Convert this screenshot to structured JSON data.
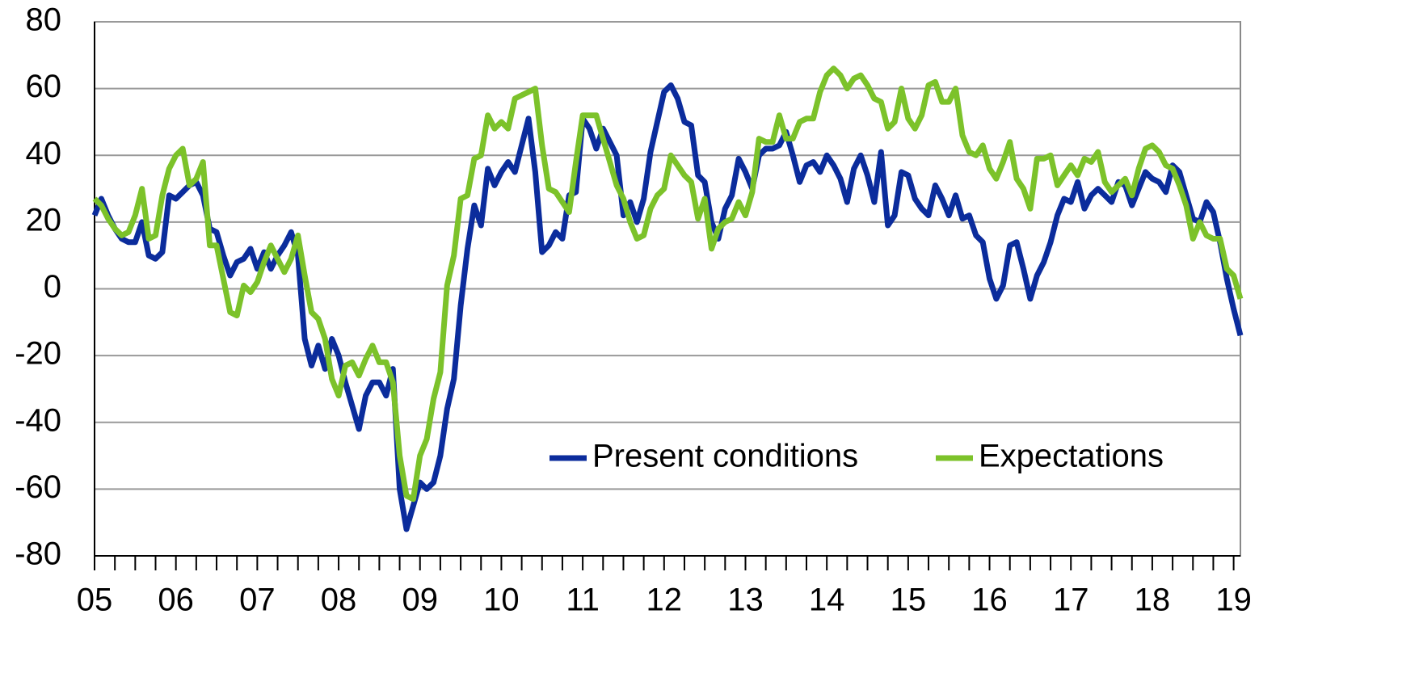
{
  "chart_data": {
    "type": "line",
    "categories": [
      "05",
      null,
      null,
      null,
      null,
      null,
      null,
      null,
      null,
      null,
      null,
      null,
      "06",
      null,
      null,
      null,
      null,
      null,
      null,
      null,
      null,
      null,
      null,
      null,
      "07",
      null,
      null,
      null,
      null,
      null,
      null,
      null,
      null,
      null,
      null,
      null,
      "08",
      null,
      null,
      null,
      null,
      null,
      null,
      null,
      null,
      null,
      null,
      null,
      "09",
      null,
      null,
      null,
      null,
      null,
      null,
      null,
      null,
      null,
      null,
      null,
      "10",
      null,
      null,
      null,
      null,
      null,
      null,
      null,
      null,
      null,
      null,
      null,
      "11",
      null,
      null,
      null,
      null,
      null,
      null,
      null,
      null,
      null,
      null,
      null,
      "12",
      null,
      null,
      null,
      null,
      null,
      null,
      null,
      null,
      null,
      null,
      null,
      "13",
      null,
      null,
      null,
      null,
      null,
      null,
      null,
      null,
      null,
      null,
      null,
      "14",
      null,
      null,
      null,
      null,
      null,
      null,
      null,
      null,
      null,
      null,
      null,
      "15",
      null,
      null,
      null,
      null,
      null,
      null,
      null,
      null,
      null,
      null,
      null,
      "16",
      null,
      null,
      null,
      null,
      null,
      null,
      null,
      null,
      null,
      null,
      null,
      "17",
      null,
      null,
      null,
      null,
      null,
      null,
      null,
      null,
      null,
      null,
      null,
      "18",
      null,
      null,
      null,
      null,
      null,
      null,
      null,
      null,
      null,
      null,
      null,
      "19",
      null
    ],
    "series": [
      {
        "name": "Present conditions",
        "color": "#0b2c9c",
        "values": [
          22,
          27,
          22,
          18,
          15,
          14,
          14,
          20,
          10,
          9,
          11,
          28,
          27,
          29,
          31,
          32,
          28,
          18,
          17,
          10,
          4,
          8,
          9,
          12,
          6,
          11,
          6,
          10,
          13,
          17,
          10,
          -15,
          -23,
          -17,
          -24,
          -15,
          -20,
          -28,
          -35,
          -42,
          -32,
          -28,
          -28,
          -32,
          -24,
          -60,
          -72,
          -65,
          -58,
          -60,
          -58,
          -50,
          -36,
          -27,
          -5,
          12,
          25,
          19,
          36,
          31,
          35,
          38,
          35,
          43,
          51,
          35,
          11,
          13,
          17,
          15,
          28,
          29,
          51,
          48,
          42,
          48,
          44,
          40,
          22,
          26,
          20,
          27,
          41,
          50,
          59,
          61,
          57,
          50,
          49,
          34,
          32,
          20,
          15,
          24,
          28,
          39,
          35,
          30,
          40,
          42,
          42,
          43,
          47,
          40,
          32,
          37,
          38,
          35,
          40,
          37,
          33,
          26,
          36,
          40,
          34,
          26,
          41,
          19,
          22,
          35,
          34,
          27,
          24,
          22,
          31,
          27,
          22,
          28,
          21,
          22,
          16,
          14,
          3,
          -3,
          1,
          13,
          14,
          6,
          -3,
          4,
          8,
          14,
          22,
          27,
          26,
          32,
          24,
          28,
          30,
          28,
          26,
          32,
          31,
          25,
          30,
          35,
          33,
          32,
          29,
          37,
          35,
          28,
          21,
          20,
          26,
          23,
          14,
          3,
          -6,
          -14
        ]
      },
      {
        "name": "Expectations",
        "color": "#7cc22a",
        "values": [
          27,
          25,
          21,
          18,
          16,
          17,
          22,
          30,
          15,
          16,
          28,
          36,
          40,
          42,
          31,
          33,
          38,
          13,
          13,
          3,
          -7,
          -8,
          1,
          -1,
          2,
          8,
          13,
          9,
          5,
          9,
          16,
          4,
          -7,
          -9,
          -15,
          -27,
          -32,
          -23,
          -22,
          -26,
          -21,
          -17,
          -22,
          -22,
          -28,
          -50,
          -62,
          -63,
          -50,
          -45,
          -33,
          -25,
          1,
          10,
          27,
          28,
          39,
          40,
          52,
          48,
          50,
          48,
          57,
          58,
          59,
          60,
          43,
          30,
          29,
          26,
          23,
          38,
          52,
          52,
          52,
          45,
          38,
          31,
          27,
          20,
          15,
          16,
          24,
          28,
          30,
          40,
          37,
          34,
          32,
          21,
          27,
          12,
          18,
          20,
          21,
          26,
          22,
          29,
          45,
          44,
          44,
          52,
          45,
          45,
          50,
          51,
          51,
          59,
          64,
          66,
          64,
          60,
          63,
          64,
          61,
          57,
          56,
          48,
          50,
          60,
          51,
          48,
          52,
          61,
          62,
          56,
          56,
          60,
          46,
          41,
          40,
          43,
          36,
          33,
          38,
          44,
          33,
          30,
          24,
          39,
          39,
          40,
          31,
          34,
          37,
          34,
          39,
          38,
          41,
          32,
          29,
          31,
          33,
          28,
          36,
          42,
          43,
          41,
          37,
          36,
          31,
          25,
          15,
          20,
          16,
          15,
          15,
          6,
          4,
          -3
        ]
      }
    ],
    "ylim": [
      -80,
      80
    ],
    "yticks": [
      -80,
      -60,
      -40,
      -20,
      0,
      20,
      40,
      60,
      80
    ],
    "grid": true,
    "legend": "lower right"
  }
}
